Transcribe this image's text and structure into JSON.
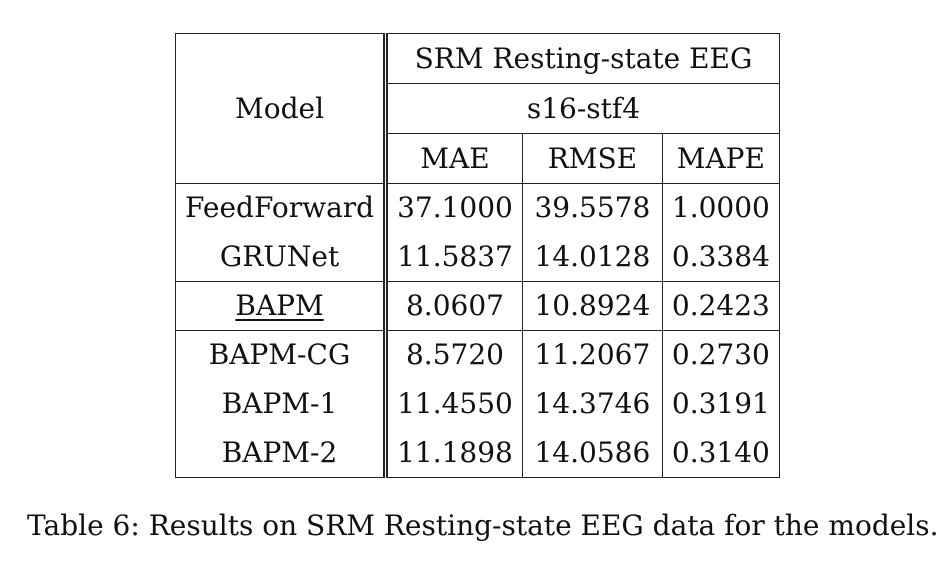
{
  "table": {
    "model_header": "Model",
    "dataset_header": "SRM Resting-state EEG",
    "subset_header": "s16-stf4",
    "metric_headers": [
      "MAE",
      "RMSE",
      "MAPE"
    ],
    "rows": [
      {
        "model": "FeedForward",
        "mae": "37.1000",
        "rmse": "39.5578",
        "mape": "1.0000"
      },
      {
        "model": "GRUNet",
        "mae": "11.5837",
        "rmse": "14.0128",
        "mape": "0.3384"
      },
      {
        "model": "BAPM",
        "mae": "8.0607",
        "rmse": "10.8924",
        "mape": "0.2423"
      },
      {
        "model": "BAPM-CG",
        "mae": "8.5720",
        "rmse": "11.2067",
        "mape": "0.2730"
      },
      {
        "model": "BAPM-1",
        "mae": "11.4550",
        "rmse": "14.3746",
        "mape": "0.3191"
      },
      {
        "model": "BAPM-2",
        "mae": "11.1898",
        "rmse": "14.0586",
        "mape": "0.3140"
      }
    ]
  },
  "caption": "Table 6: Results on SRM Resting-state EEG data for the models."
}
